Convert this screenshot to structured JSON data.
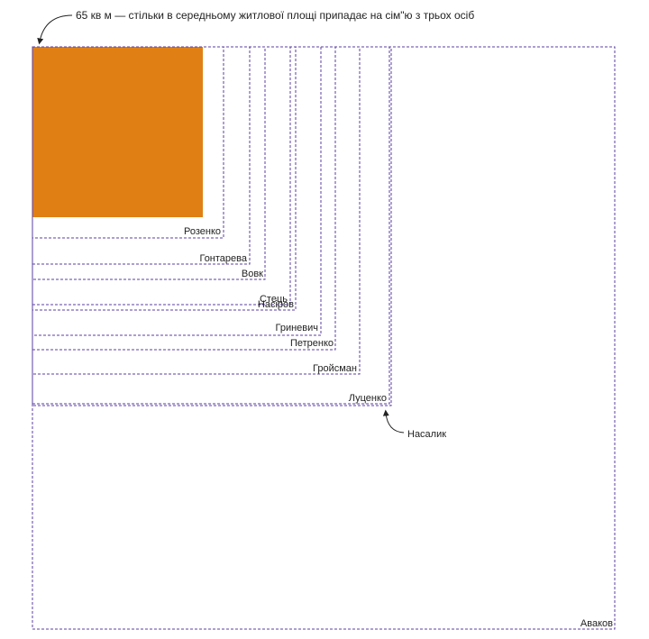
{
  "chart_data": {
    "type": "nested-squares",
    "title": "",
    "annotation_top": "65 кв м — стільки в середньому житлової площі припадає на сім\"ю з трьох осіб",
    "reference": {
      "name": "65 кв м",
      "value": 65,
      "color": "#e07f14"
    },
    "outline_color": "#5b3fa3",
    "squares": [
      {
        "name": "Розенко"
      },
      {
        "name": "Гонтарева"
      },
      {
        "name": "Вовк"
      },
      {
        "name": "Стець"
      },
      {
        "name": "Насіров"
      },
      {
        "name": "Гриневич"
      },
      {
        "name": "Петренко"
      },
      {
        "name": "Гройсман"
      },
      {
        "name": "Луценко"
      },
      {
        "name": "Насалик"
      },
      {
        "name": "Аваков"
      }
    ]
  }
}
